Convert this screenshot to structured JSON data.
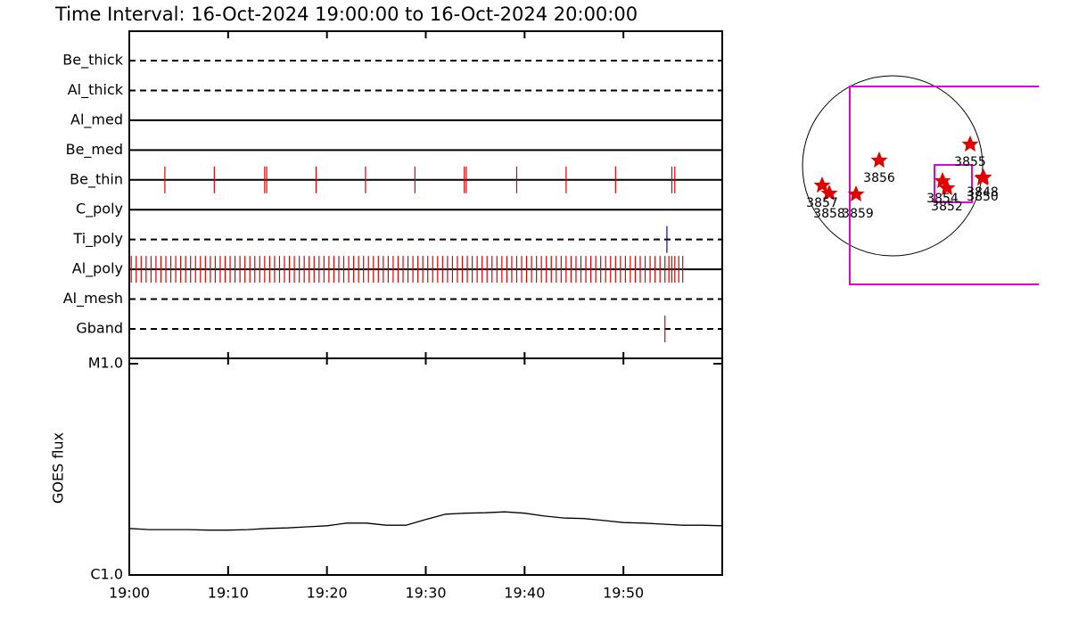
{
  "title": "Time Interval: 16-Oct-2024 19:00:00 to 16-Oct-2024 20:00:00",
  "chart_data": [
    {
      "type": "event",
      "categories": [
        "Be_thick",
        "Al_thick",
        "Al_med",
        "Be_med",
        "Be_thin",
        "C_poly",
        "Ti_poly",
        "Al_poly",
        "Al_mesh",
        "Gband"
      ],
      "line_styles": [
        "dashed",
        "dashed",
        "solid",
        "solid",
        "solid",
        "solid",
        "dashed",
        "solid",
        "dashed",
        "dashed"
      ],
      "events": [
        {
          "x": [],
          "color": "#e00000"
        },
        {
          "x": [],
          "color": "#e00000"
        },
        {
          "x": [],
          "color": "#e00000"
        },
        {
          "x": [],
          "color": "#e00000"
        },
        {
          "x": [
            3.6,
            8.6,
            13.7,
            13.9,
            18.9,
            23.9,
            28.9,
            33.9,
            34.1,
            39.2,
            44.2,
            49.2,
            54.9,
            55.2
          ],
          "color": "#e00000"
        },
        {
          "x": [],
          "color": "#e00000"
        },
        {
          "x": [
            54.4
          ],
          "color": "#0000e0"
        },
        {
          "x": [
            0.2,
            0.7,
            1.2,
            1.7,
            2.2,
            2.7,
            3.2,
            3.7,
            4.2,
            4.7,
            5.2,
            5.7,
            6.2,
            6.7,
            7.2,
            7.7,
            8.2,
            8.7,
            9.2,
            9.7,
            10.2,
            10.7,
            11.2,
            11.7,
            12.2,
            12.7,
            13.2,
            13.7,
            14.2,
            14.7,
            15.2,
            15.7,
            16.2,
            16.7,
            17.2,
            17.7,
            18.2,
            18.7,
            19.2,
            19.7,
            20.2,
            20.7,
            21.2,
            21.7,
            22.2,
            22.7,
            23.2,
            23.7,
            24.2,
            24.7,
            25.2,
            25.7,
            26.2,
            26.7,
            27.2,
            27.7,
            28.2,
            28.7,
            29.2,
            29.7,
            30.2,
            30.7,
            31.2,
            31.7,
            32.2,
            32.7,
            33.2,
            33.7,
            34.2,
            34.7,
            35.2,
            35.7,
            36.2,
            36.7,
            37.2,
            37.7,
            38.2,
            38.7,
            39.2,
            39.7,
            40.2,
            40.7,
            41.2,
            41.7,
            42.2,
            42.7,
            43.2,
            43.7,
            44.2,
            44.7,
            45.2,
            45.7,
            46.2,
            46.7,
            47.2,
            47.7,
            48.2,
            48.7,
            49.2,
            49.7,
            50.2,
            50.7,
            51.2,
            51.7,
            52.2,
            52.7,
            53.2,
            53.7,
            54.2,
            54.6,
            54.9,
            55.2,
            55.6,
            56.0
          ],
          "color": "#e00000"
        },
        {
          "x": [],
          "color": "#e00000"
        },
        {
          "x": [
            54.2
          ],
          "color": "#e00000"
        }
      ],
      "xlim": [
        0,
        60
      ],
      "xticks": [
        0,
        10,
        20,
        30,
        40,
        50
      ]
    },
    {
      "type": "line",
      "y_label": "GOES flux",
      "log_scale": true,
      "color": "#000000",
      "x": [
        0,
        2,
        4,
        6,
        8,
        10,
        12,
        14,
        16,
        18,
        20,
        22,
        24,
        26,
        28,
        30,
        32,
        34,
        36,
        38,
        40,
        42,
        44,
        46,
        48,
        50,
        52,
        54,
        56,
        58,
        60
      ],
      "values": [
        1.66e-06,
        1.64e-06,
        1.64e-06,
        1.64e-06,
        1.63e-06,
        1.63e-06,
        1.64e-06,
        1.66e-06,
        1.67e-06,
        1.69e-06,
        1.71e-06,
        1.76e-06,
        1.76e-06,
        1.72e-06,
        1.72e-06,
        1.83e-06,
        1.94e-06,
        1.96e-06,
        1.97e-06,
        1.99e-06,
        1.96e-06,
        1.9e-06,
        1.86e-06,
        1.85e-06,
        1.81e-06,
        1.77e-06,
        1.76e-06,
        1.74e-06,
        1.72e-06,
        1.72e-06,
        1.71e-06
      ],
      "xlim": [
        0,
        60
      ],
      "xticks": [
        {
          "value": 0,
          "label": "19:00"
        },
        {
          "value": 10,
          "label": "19:10"
        },
        {
          "value": 20,
          "label": "19:20"
        },
        {
          "value": 30,
          "label": "19:30"
        },
        {
          "value": 40,
          "label": "19:40"
        },
        {
          "value": 50,
          "label": "19:50"
        }
      ],
      "ylim": [
        1e-06,
        1e-05
      ],
      "yticks": [
        {
          "value": 1e-06,
          "label": "C1.0"
        },
        {
          "value": 1e-05,
          "label": "M1.0"
        }
      ]
    }
  ],
  "map": {
    "labels": [
      "3855",
      "3856",
      "3857",
      "3858",
      "3859",
      "3854",
      "3852",
      "3848",
      "3850"
    ]
  }
}
